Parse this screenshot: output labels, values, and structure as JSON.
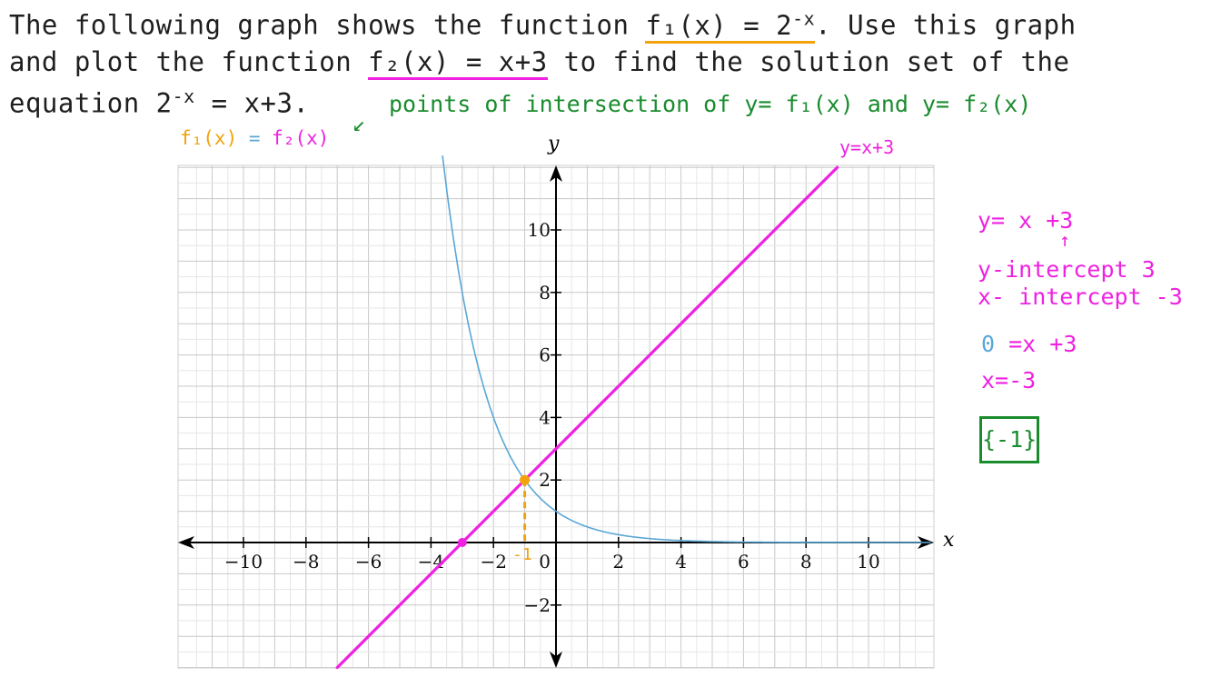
{
  "problem": {
    "line1_a": "The following graph shows the function",
    "f1_def": "f₁(x) = 2",
    "f1_exp": "-x",
    "line1_b": ". Use this graph",
    "line2_a": "and plot the function",
    "f2_def": "f₂(x) = x+3",
    "line2_b": "to find  the solution set of the",
    "line3_a": "equation 2",
    "eq_exp": "-x",
    "line3_b": "= x+3."
  },
  "annotations": {
    "intersection_note": "points of intersection of  y= f₁(x) and  y= f₂(x)",
    "f1_eq_f2_left": "f₁(x)",
    "f1_eq_f2_mid": " = ",
    "f1_eq_f2_right": "f₂(x)",
    "line_label": "y=x+3",
    "x_marker": "-1"
  },
  "side_notes": {
    "eq": "y= x +3",
    "arrow": "↑",
    "y_intercept": "y-intercept 3",
    "x_intercept": "x- intercept -3",
    "zero_eq": "0 =x +3",
    "x_eq": "x=-3",
    "answer": "{-1}"
  },
  "colors": {
    "line": "#ee22e0",
    "curve": "#5ba7d6",
    "highlight": "#f2a20c",
    "note_green": "#1a8c2e",
    "grid": "#cfcfcf"
  },
  "chart_data": {
    "type": "line",
    "xlabel": "x",
    "ylabel": "y",
    "xlim": [
      -12,
      12
    ],
    "ylim": [
      -4,
      12
    ],
    "grid": true,
    "x_ticks": [
      -10,
      -8,
      -6,
      -4,
      -2,
      2,
      4,
      6,
      8,
      10
    ],
    "y_ticks": [
      -2,
      2,
      4,
      6,
      8,
      10
    ],
    "x_tick_labels": [
      "−10",
      "−8",
      "−6",
      "−4",
      "−2",
      "2",
      "4",
      "6",
      "8",
      "10"
    ],
    "y_tick_labels": [
      "−2",
      "2",
      "4",
      "6",
      "8",
      "10"
    ],
    "origin_label": "0",
    "series": [
      {
        "name": "f₁(x) = 2^(-x)",
        "kind": "exponential",
        "function": "2^(-x)",
        "x_range": [
          -3.75,
          12
        ]
      },
      {
        "name": "y=x+3",
        "kind": "linear",
        "slope": 1,
        "intercept": 3,
        "x_range": [
          -7,
          9
        ]
      }
    ],
    "points": [
      {
        "x": -1,
        "y": 2,
        "label": "intersection"
      },
      {
        "x": -3,
        "y": 0,
        "label": "x-intercept"
      }
    ]
  }
}
